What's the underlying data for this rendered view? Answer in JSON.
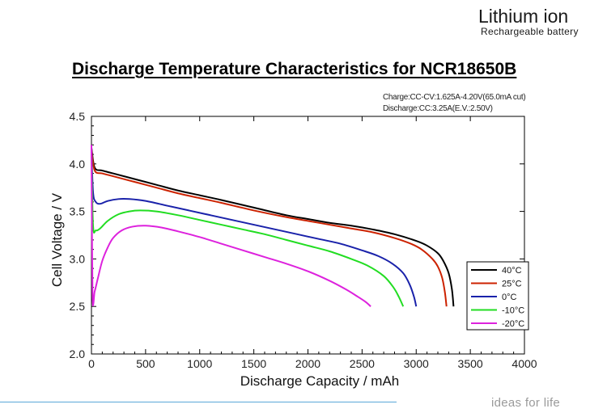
{
  "brand": {
    "title": "Lithium ion",
    "subtitle": "Rechargeable  battery"
  },
  "footer": {
    "tagline": "ideas for life",
    "line_color": "#5aa8d8"
  },
  "conditions": {
    "charge": "Charge:CC-CV:1.625A-4.20V(65.0mA cut)",
    "discharge": "Discharge:CC:3.25A(E.V.:2.50V)"
  },
  "chart_data": {
    "type": "line",
    "title": "Discharge Temperature Characteristics for NCR18650B",
    "xlabel": "Discharge Capacity / mAh",
    "ylabel": "Cell Voltage / V",
    "xlim": [
      0,
      4000
    ],
    "ylim": [
      2.0,
      4.5
    ],
    "xticks": [
      0,
      500,
      1000,
      1500,
      2000,
      2500,
      3000,
      3500,
      4000
    ],
    "yticks": [
      2.0,
      2.5,
      3.0,
      3.5,
      4.0,
      4.5
    ],
    "grid": false,
    "legend_position": "right",
    "series": [
      {
        "name": "40°C",
        "color": "#000000",
        "x": [
          0,
          30,
          100,
          200,
          400,
          600,
          800,
          1000,
          1200,
          1500,
          1800,
          2000,
          2200,
          2400,
          2600,
          2800,
          3000,
          3100,
          3200,
          3250,
          3300,
          3330,
          3345
        ],
        "y": [
          4.17,
          3.96,
          3.93,
          3.9,
          3.84,
          3.78,
          3.72,
          3.67,
          3.62,
          3.54,
          3.46,
          3.42,
          3.38,
          3.35,
          3.31,
          3.26,
          3.19,
          3.14,
          3.06,
          2.98,
          2.85,
          2.68,
          2.5
        ]
      },
      {
        "name": "25°C",
        "color": "#cc2200",
        "x": [
          0,
          30,
          100,
          200,
          400,
          600,
          800,
          1000,
          1200,
          1500,
          1800,
          2000,
          2200,
          2400,
          2600,
          2800,
          2950,
          3050,
          3150,
          3200,
          3240,
          3265,
          3280
        ],
        "y": [
          4.15,
          3.93,
          3.9,
          3.87,
          3.81,
          3.75,
          3.69,
          3.64,
          3.59,
          3.51,
          3.44,
          3.4,
          3.36,
          3.32,
          3.28,
          3.22,
          3.16,
          3.1,
          3.0,
          2.92,
          2.8,
          2.65,
          2.5
        ]
      },
      {
        "name": "0°C",
        "color": "#1a22aa",
        "x": [
          0,
          15,
          40,
          80,
          150,
          250,
          350,
          500,
          700,
          900,
          1100,
          1300,
          1500,
          1700,
          1900,
          2100,
          2300,
          2500,
          2650,
          2780,
          2880,
          2940,
          2980,
          3000
        ],
        "y": [
          4.15,
          3.7,
          3.6,
          3.58,
          3.61,
          3.63,
          3.63,
          3.61,
          3.56,
          3.51,
          3.46,
          3.41,
          3.36,
          3.31,
          3.26,
          3.21,
          3.16,
          3.09,
          3.03,
          2.95,
          2.85,
          2.73,
          2.6,
          2.5
        ]
      },
      {
        "name": "-10°C",
        "color": "#22dd22",
        "x": [
          0,
          15,
          40,
          80,
          150,
          250,
          350,
          450,
          600,
          800,
          1000,
          1200,
          1400,
          1600,
          1800,
          2000,
          2200,
          2400,
          2550,
          2700,
          2790,
          2840,
          2880
        ],
        "y": [
          4.1,
          3.35,
          3.3,
          3.32,
          3.4,
          3.47,
          3.5,
          3.51,
          3.5,
          3.46,
          3.41,
          3.36,
          3.31,
          3.26,
          3.2,
          3.14,
          3.08,
          3.0,
          2.93,
          2.82,
          2.7,
          2.6,
          2.5
        ]
      },
      {
        "name": "-20°C",
        "color": "#dd22dd",
        "x": [
          0,
          10,
          30,
          60,
          100,
          150,
          200,
          280,
          380,
          500,
          650,
          800,
          1000,
          1200,
          1400,
          1600,
          1800,
          2000,
          2200,
          2350,
          2450,
          2530,
          2580
        ],
        "y": [
          4.2,
          2.62,
          2.66,
          2.8,
          2.98,
          3.12,
          3.22,
          3.3,
          3.34,
          3.35,
          3.33,
          3.29,
          3.23,
          3.16,
          3.09,
          3.02,
          2.95,
          2.87,
          2.77,
          2.68,
          2.61,
          2.55,
          2.5
        ]
      }
    ]
  }
}
